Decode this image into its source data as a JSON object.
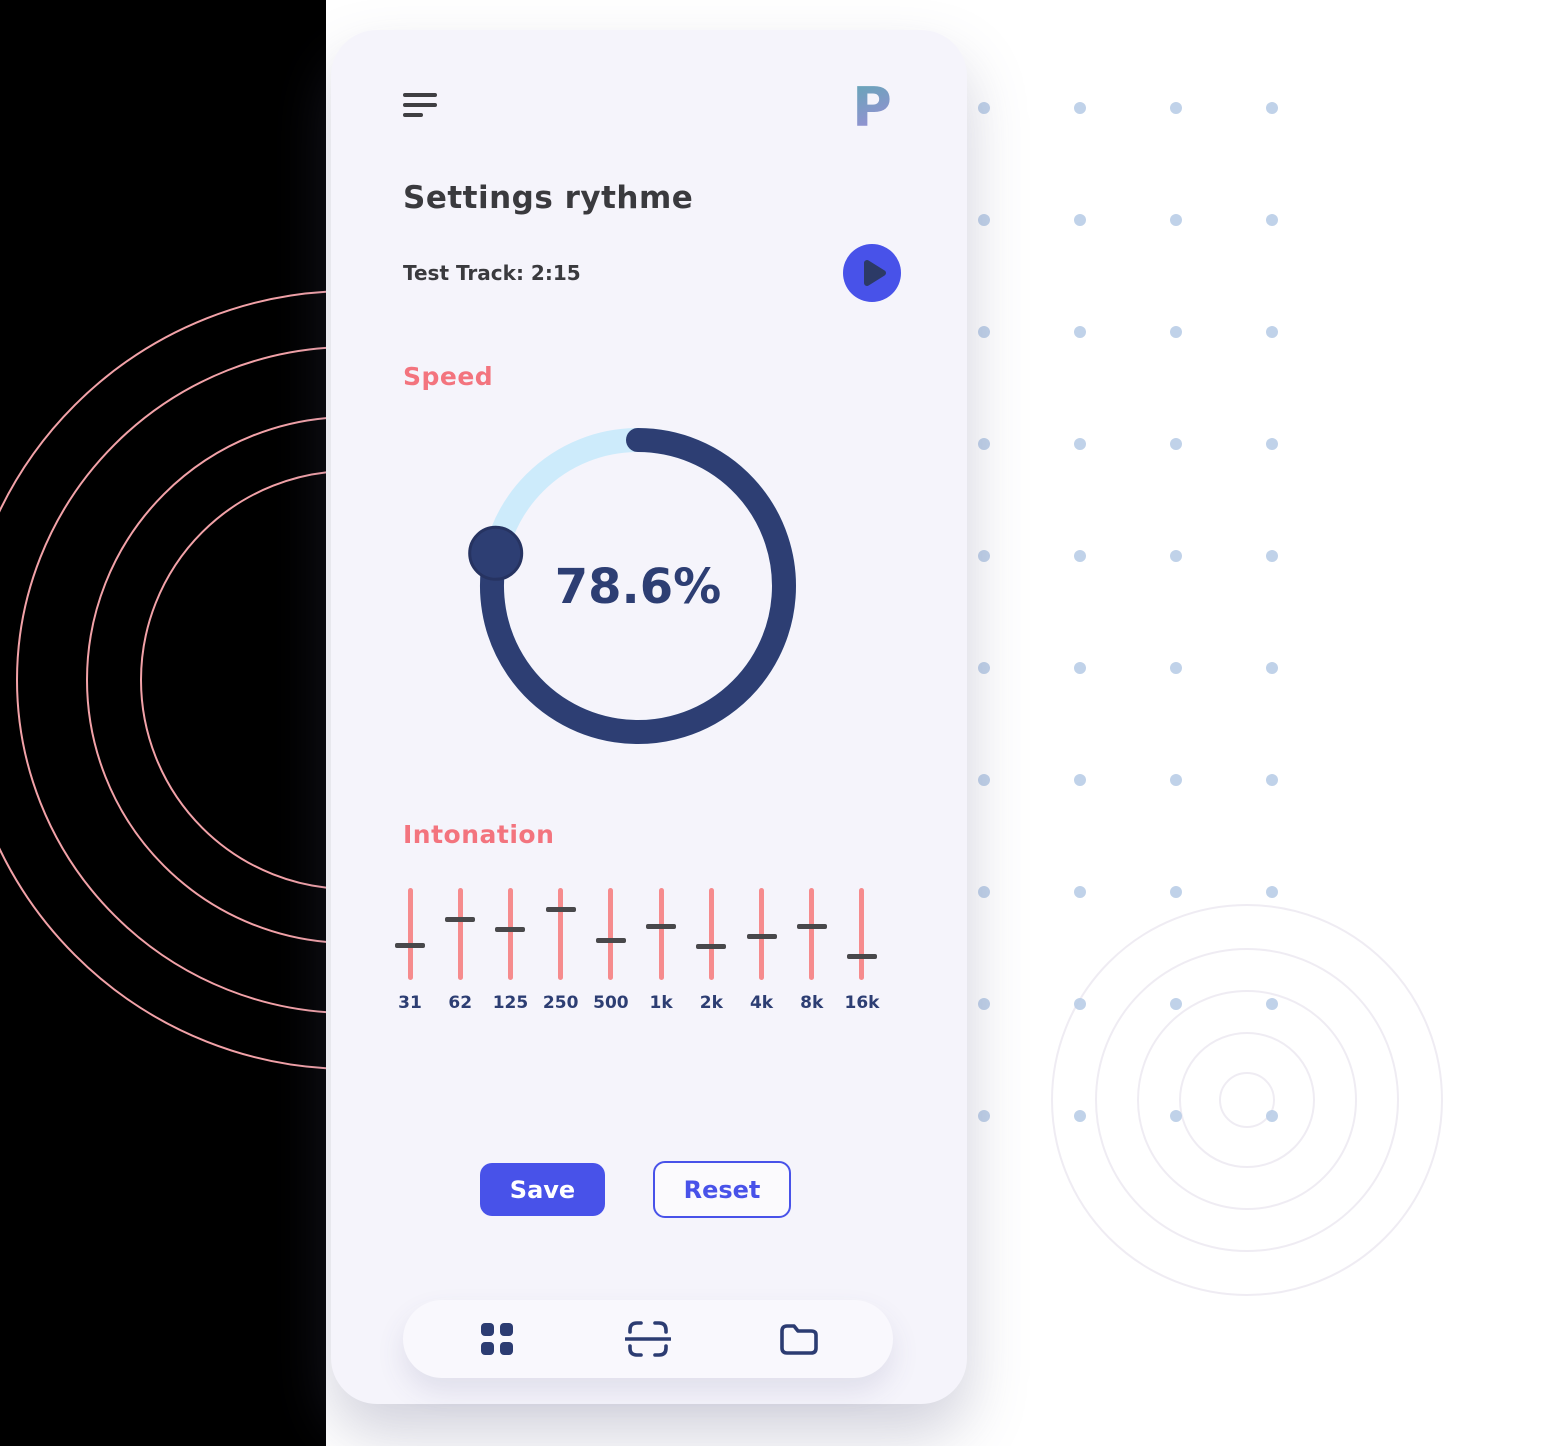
{
  "header": {
    "logo_letter": "P"
  },
  "page": {
    "title": "Settings rythme",
    "track_info": "Test Track: 2:15"
  },
  "speed": {
    "label": "Speed",
    "percent": 78.6,
    "value_text": "78.6%"
  },
  "intonation": {
    "label": "Intonation",
    "bands": [
      {
        "label": "31",
        "handle": 0.62
      },
      {
        "label": "62",
        "handle": 0.34
      },
      {
        "label": "125",
        "handle": 0.45
      },
      {
        "label": "250",
        "handle": 0.23
      },
      {
        "label": "500",
        "handle": 0.57
      },
      {
        "label": "1k",
        "handle": 0.42
      },
      {
        "label": "2k",
        "handle": 0.64
      },
      {
        "label": "4k",
        "handle": 0.53
      },
      {
        "label": "8k",
        "handle": 0.42
      },
      {
        "label": "16k",
        "handle": 0.74
      }
    ]
  },
  "actions": {
    "save_label": "Save",
    "reset_label": "Reset"
  },
  "nav": {
    "icons": [
      "grid-icon",
      "scan-icon",
      "folder-icon"
    ]
  },
  "colors": {
    "accent_blue": "#4852e9",
    "navy": "#2d3e73",
    "coral": "#f3747e",
    "eq_track": "#f68b8d",
    "eq_handle": "#48484b",
    "dial_track": "#cdebfb",
    "dot_blue": "#b9cde7",
    "ring_coral": "#f2a2a8"
  }
}
